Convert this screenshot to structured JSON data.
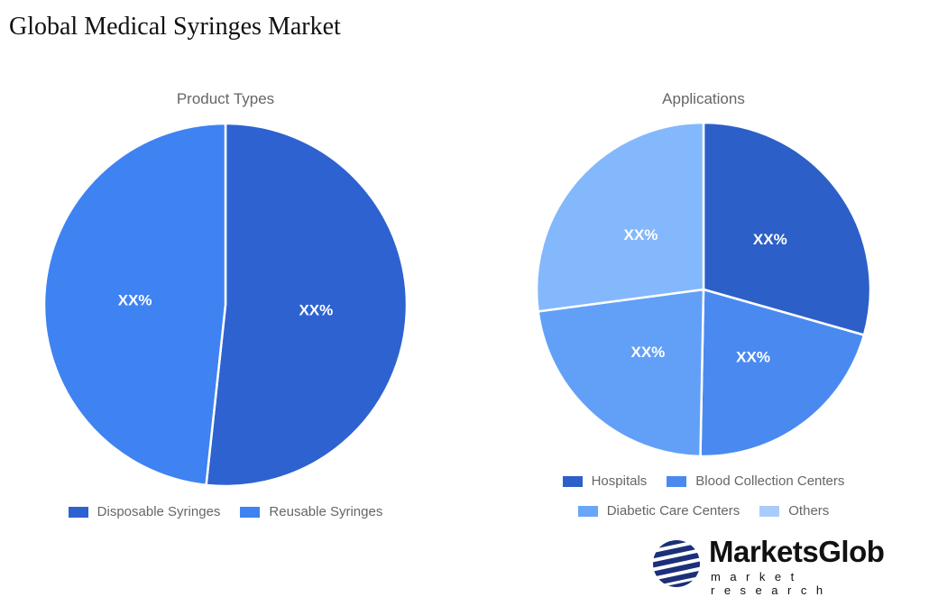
{
  "title": "Global Medical Syringes Market",
  "chart_data": [
    {
      "type": "pie",
      "title": "Product Types",
      "categories": [
        "Disposable Syringes",
        "Reusable Syringes"
      ],
      "values": [
        51.7,
        48.3
      ],
      "data_labels": [
        "XX%",
        "XX%"
      ],
      "colors": [
        "#2d62d0",
        "#3f82f2"
      ],
      "legend": "bottom"
    },
    {
      "type": "pie",
      "title": "Applications",
      "categories": [
        "Hospitals",
        "Blood Collection Centers",
        "Diabetic Care Centers",
        "Others"
      ],
      "values": [
        29.4,
        20.9,
        22.6,
        27.1
      ],
      "data_labels": [
        "XX%",
        "XX%",
        "XX%",
        "XX%"
      ],
      "colors": [
        "#2d5fc8",
        "#4a8af0",
        "#62a0f8",
        "#84b8fc"
      ],
      "legend_colors": [
        "#2d5fc8",
        "#4a8af0",
        "#6aa6f8",
        "#aaccfc"
      ],
      "legend": "bottom"
    }
  ],
  "logo": {
    "brand": "MarketsGlob",
    "tagline": "market research"
  }
}
